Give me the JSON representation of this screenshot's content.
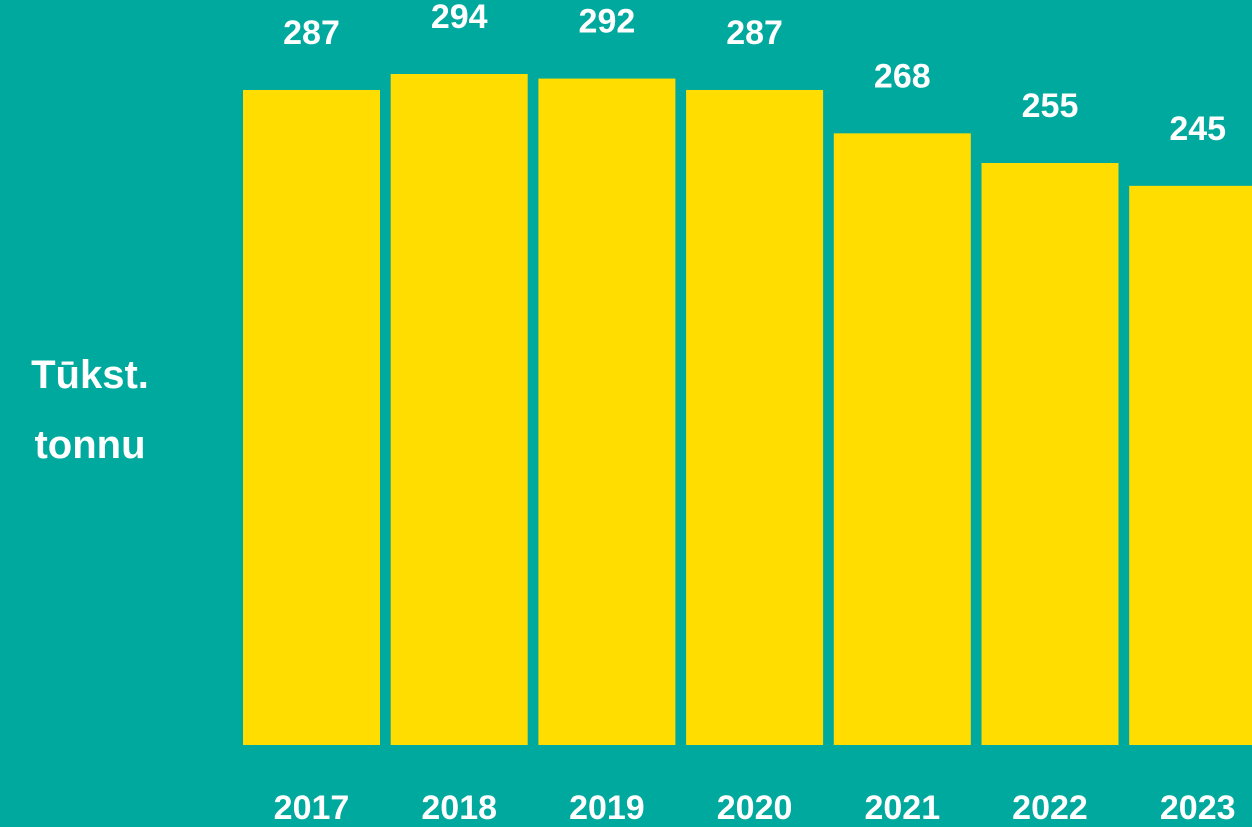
{
  "chart_data": {
    "type": "bar",
    "y_label": "Tūkst. tonnu",
    "categories": [
      "2017",
      "2018",
      "2019",
      "2020",
      "2021",
      "2022",
      "2023"
    ],
    "values": [
      287,
      294,
      292,
      287,
      268,
      255,
      245
    ],
    "color": "#ffdd00"
  }
}
